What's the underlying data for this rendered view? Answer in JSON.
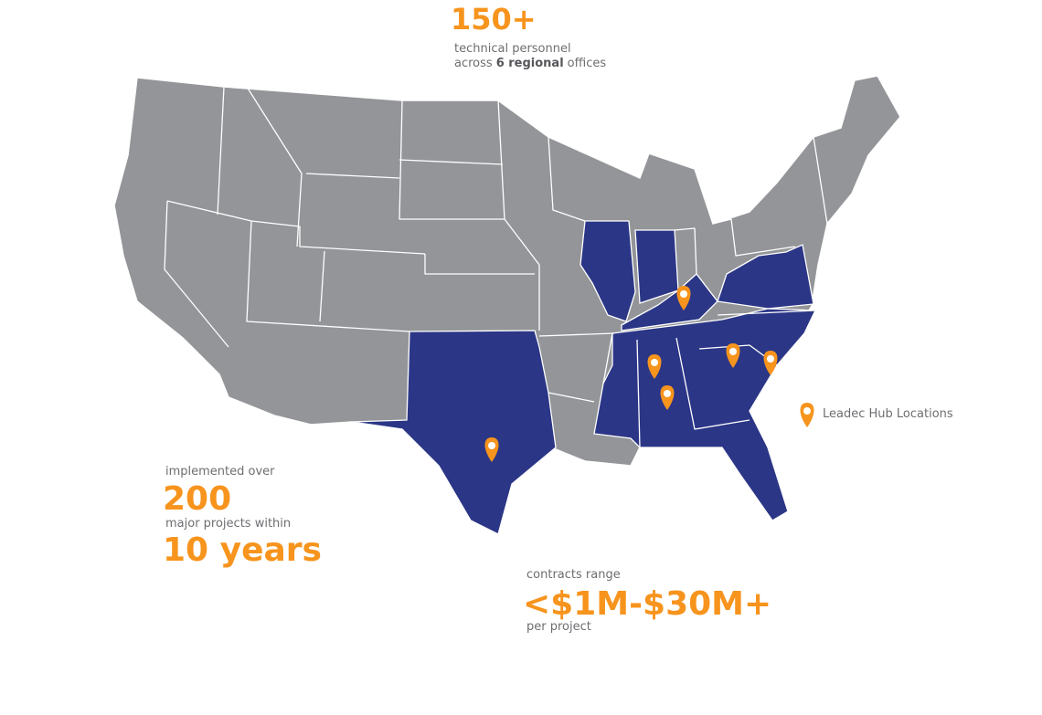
{
  "personnel": {
    "figure": "150+",
    "line1": "technical personnel",
    "line2": {
      "before": "across",
      "bold": "6 regional",
      "after": "offices"
    }
  },
  "projects": {
    "intro": "implemented over",
    "figure": "200",
    "middle": "major projects within",
    "period": "10 years"
  },
  "contracts": {
    "intro": "contracts range",
    "figure": "<$1M-$30M+",
    "outro": "per project"
  },
  "legend": {
    "label": "Leadec Hub Locations"
  }
}
